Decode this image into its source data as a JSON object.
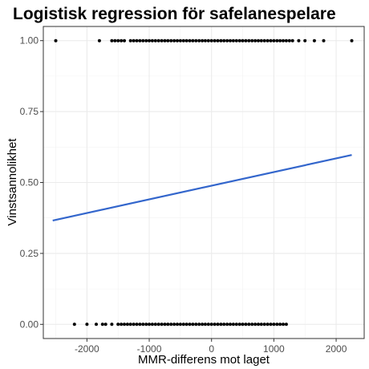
{
  "chart_data": {
    "type": "scatter",
    "title": "Logistisk regression för safelanespelare",
    "xlabel": "MMR-differens mot laget",
    "ylabel": "Vinstsannolikhet",
    "xlim": [
      -2700,
      2450
    ],
    "ylim": [
      -0.05,
      1.05
    ],
    "x_ticks": [
      -2000,
      -1000,
      0,
      1000,
      2000
    ],
    "x_tick_labels": [
      "-2000",
      "-1000",
      "0",
      "1000",
      "2000"
    ],
    "y_ticks": [
      0,
      0.25,
      0.5,
      0.75,
      1
    ],
    "y_tick_labels": [
      "0.00",
      "0.25",
      "0.50",
      "0.75",
      "1.00"
    ],
    "grid": true,
    "point_color": "#000000",
    "line_color": "#3366cc",
    "series": [
      {
        "type": "scatter",
        "y": 1,
        "x": [
          -2500,
          -1800,
          -1600,
          -1550,
          -1500,
          -1450,
          -1400,
          -1300,
          -1250,
          -1200,
          -1150,
          -1100,
          -1050,
          -1000,
          -950,
          -900,
          -850,
          -800,
          -750,
          -700,
          -650,
          -600,
          -550,
          -500,
          -450,
          -400,
          -350,
          -300,
          -250,
          -200,
          -150,
          -100,
          -50,
          0,
          50,
          100,
          150,
          200,
          250,
          300,
          350,
          400,
          450,
          500,
          550,
          600,
          650,
          700,
          750,
          800,
          850,
          900,
          950,
          1000,
          1050,
          1100,
          1150,
          1200,
          1250,
          1300,
          1400,
          1500,
          1650,
          1800,
          2250
        ]
      },
      {
        "type": "scatter",
        "y": 0,
        "x": [
          -2200,
          -2000,
          -1850,
          -1750,
          -1700,
          -1600,
          -1500,
          -1450,
          -1400,
          -1350,
          -1300,
          -1250,
          -1200,
          -1150,
          -1100,
          -1050,
          -1000,
          -950,
          -900,
          -850,
          -800,
          -750,
          -700,
          -650,
          -600,
          -550,
          -500,
          -450,
          -400,
          -350,
          -300,
          -250,
          -200,
          -150,
          -100,
          -50,
          0,
          50,
          100,
          150,
          200,
          250,
          300,
          350,
          400,
          450,
          500,
          550,
          600,
          650,
          700,
          750,
          800,
          850,
          900,
          950,
          1000,
          1050,
          1100,
          1150,
          1200
        ]
      },
      {
        "type": "line",
        "x": [
          -2550,
          2250
        ],
        "y": [
          0.366,
          0.597
        ]
      }
    ]
  }
}
